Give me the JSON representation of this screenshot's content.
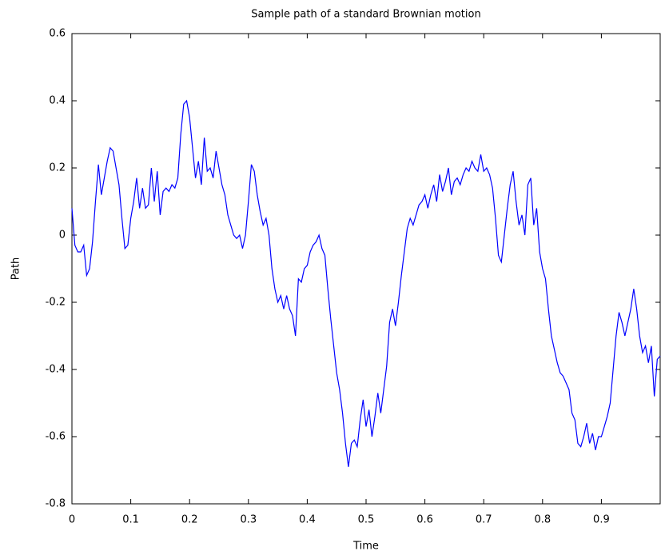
{
  "chart_data": {
    "type": "line",
    "title": "Sample path of a standard Brownian motion",
    "xlabel": "Time",
    "ylabel": "Path",
    "color": "#0000ff",
    "x": [
      0,
      0.005,
      0.01,
      0.015,
      0.02,
      0.025,
      0.03,
      0.035,
      0.04,
      0.045,
      0.05,
      0.055,
      0.06,
      0.065,
      0.07,
      0.075,
      0.08,
      0.085,
      0.09,
      0.095,
      0.1,
      0.105,
      0.11,
      0.115,
      0.12,
      0.125,
      0.13,
      0.135,
      0.14,
      0.145,
      0.15,
      0.155,
      0.16,
      0.165,
      0.17,
      0.175,
      0.18,
      0.185,
      0.19,
      0.195,
      0.2,
      0.205,
      0.21,
      0.215,
      0.22,
      0.225,
      0.23,
      0.235,
      0.24,
      0.245,
      0.25,
      0.255,
      0.26,
      0.265,
      0.27,
      0.275,
      0.28,
      0.285,
      0.29,
      0.295,
      0.3,
      0.305,
      0.31,
      0.315,
      0.32,
      0.325,
      0.33,
      0.335,
      0.34,
      0.345,
      0.35,
      0.355,
      0.36,
      0.365,
      0.37,
      0.375,
      0.38,
      0.385,
      0.39,
      0.395,
      0.4,
      0.405,
      0.41,
      0.415,
      0.42,
      0.425,
      0.43,
      0.435,
      0.44,
      0.445,
      0.45,
      0.455,
      0.46,
      0.465,
      0.47,
      0.475,
      0.48,
      0.485,
      0.49,
      0.495,
      0.5,
      0.505,
      0.51,
      0.515,
      0.52,
      0.525,
      0.53,
      0.535,
      0.54,
      0.545,
      0.55,
      0.555,
      0.56,
      0.565,
      0.57,
      0.575,
      0.58,
      0.585,
      0.59,
      0.595,
      0.6,
      0.605,
      0.61,
      0.615,
      0.62,
      0.625,
      0.63,
      0.635,
      0.64,
      0.645,
      0.65,
      0.655,
      0.66,
      0.665,
      0.67,
      0.675,
      0.68,
      0.685,
      0.69,
      0.695,
      0.7,
      0.705,
      0.71,
      0.715,
      0.72,
      0.725,
      0.73,
      0.735,
      0.74,
      0.745,
      0.75,
      0.755,
      0.76,
      0.765,
      0.77,
      0.775,
      0.78,
      0.785,
      0.79,
      0.795,
      0.8,
      0.805,
      0.81,
      0.815,
      0.82,
      0.825,
      0.83,
      0.835,
      0.84,
      0.845,
      0.85,
      0.855,
      0.86,
      0.865,
      0.87,
      0.875,
      0.88,
      0.885,
      0.89,
      0.895,
      0.9,
      0.905,
      0.91,
      0.915,
      0.92,
      0.925,
      0.93,
      0.935,
      0.94,
      0.945,
      0.95,
      0.955,
      0.96,
      0.965,
      0.97,
      0.975,
      0.98,
      0.985,
      0.99,
      0.995,
      1
    ],
    "values": [
      0.08,
      -0.03,
      -0.05,
      -0.05,
      -0.03,
      -0.12,
      -0.1,
      -0.02,
      0.1,
      0.21,
      0.12,
      0.17,
      0.22,
      0.26,
      0.25,
      0.2,
      0.15,
      0.05,
      -0.04,
      -0.03,
      0.05,
      0.1,
      0.17,
      0.08,
      0.14,
      0.08,
      0.09,
      0.2,
      0.1,
      0.19,
      0.06,
      0.13,
      0.14,
      0.13,
      0.15,
      0.14,
      0.17,
      0.3,
      0.39,
      0.4,
      0.35,
      0.26,
      0.17,
      0.22,
      0.15,
      0.29,
      0.19,
      0.2,
      0.17,
      0.25,
      0.2,
      0.15,
      0.12,
      0.06,
      0.03,
      0,
      -0.01,
      0,
      -0.04,
      0,
      0.1,
      0.21,
      0.19,
      0.12,
      0.07,
      0.03,
      0.05,
      0,
      -0.1,
      -0.16,
      -0.2,
      -0.18,
      -0.22,
      -0.18,
      -0.22,
      -0.24,
      -0.3,
      -0.13,
      -0.14,
      -0.1,
      -0.09,
      -0.05,
      -0.03,
      -0.02,
      0,
      -0.04,
      -0.06,
      -0.16,
      -0.25,
      -0.33,
      -0.41,
      -0.46,
      -0.53,
      -0.62,
      -0.69,
      -0.62,
      -0.61,
      -0.63,
      -0.55,
      -0.49,
      -0.57,
      -0.52,
      -0.6,
      -0.54,
      -0.47,
      -0.53,
      -0.46,
      -0.39,
      -0.26,
      -0.22,
      -0.27,
      -0.2,
      -0.12,
      -0.05,
      0.02,
      0.05,
      0.03,
      0.06,
      0.09,
      0.1,
      0.12,
      0.08,
      0.12,
      0.15,
      0.1,
      0.18,
      0.13,
      0.16,
      0.2,
      0.12,
      0.16,
      0.17,
      0.15,
      0.18,
      0.2,
      0.19,
      0.22,
      0.2,
      0.19,
      0.24,
      0.19,
      0.2,
      0.18,
      0.14,
      0.05,
      -0.06,
      -0.08,
      0,
      0.08,
      0.15,
      0.19,
      0.1,
      0.03,
      0.06,
      0,
      0.15,
      0.17,
      0.03,
      0.08,
      -0.05,
      -0.1,
      -0.13,
      -0.22,
      -0.3,
      -0.34,
      -0.38,
      -0.41,
      -0.42,
      -0.44,
      -0.46,
      -0.53,
      -0.55,
      -0.62,
      -0.63,
      -0.6,
      -0.56,
      -0.62,
      -0.59,
      -0.64,
      -0.6,
      -0.6,
      -0.57,
      -0.54,
      -0.5,
      -0.4,
      -0.3,
      -0.23,
      -0.26,
      -0.3,
      -0.26,
      -0.22,
      -0.16,
      -0.22,
      -0.3,
      -0.35,
      -0.33,
      -0.38,
      -0.33,
      -0.48,
      -0.37,
      -0.36
    ],
    "xlim": [
      0,
      1
    ],
    "xticks": [
      0,
      0.1,
      0.2,
      0.3,
      0.4,
      0.5,
      0.6,
      0.7,
      0.8,
      0.9
    ],
    "ylim": [
      -0.8,
      0.6
    ],
    "yticks": [
      -0.8,
      -0.6,
      -0.4,
      -0.2,
      0,
      0.2,
      0.4,
      0.6
    ],
    "grid": false
  }
}
